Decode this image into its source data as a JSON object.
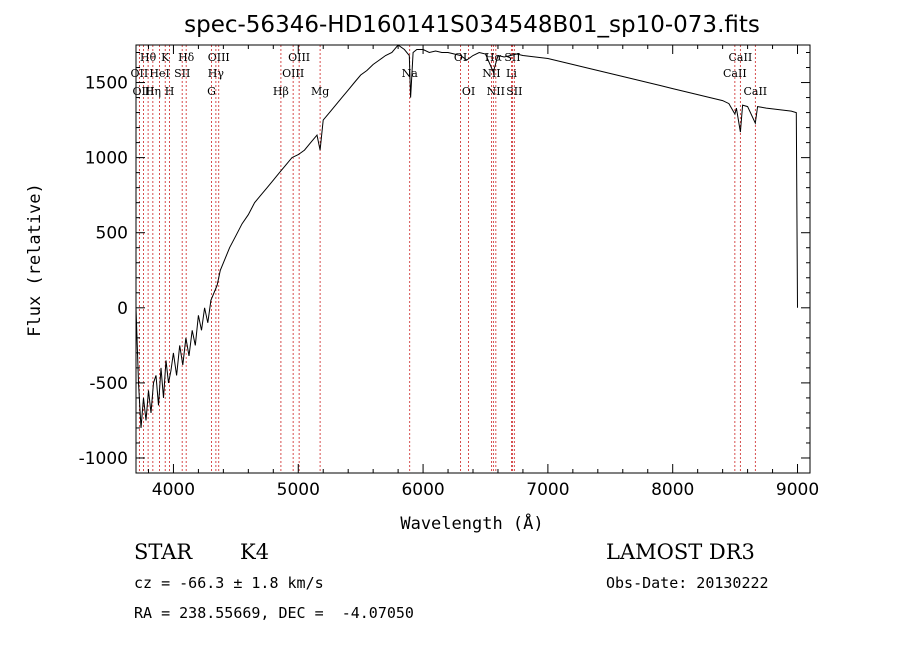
{
  "chart_data": {
    "type": "line",
    "title": "spec-56346-HD160141S034548B01_sp10-073.fits",
    "xlabel": "Wavelength (Å)",
    "ylabel": "Flux (relative)",
    "xlim": [
      3700,
      9100
    ],
    "ylim": [
      -1100,
      1750
    ],
    "xticks": [
      4000,
      5000,
      6000,
      7000,
      8000,
      9000
    ],
    "yticks": [
      -1000,
      -500,
      0,
      500,
      1000,
      1500
    ],
    "series": [
      {
        "x": [
          3700,
          3720,
          3740,
          3760,
          3780,
          3800,
          3820,
          3840,
          3860,
          3880,
          3900,
          3920,
          3940,
          3960,
          3980,
          4000,
          4025,
          4050,
          4075,
          4100,
          4125,
          4150,
          4175,
          4200,
          4225,
          4250,
          4275,
          4300,
          4325,
          4350,
          4375,
          4400,
          4450,
          4500,
          4550,
          4600,
          4650,
          4700,
          4750,
          4800,
          4850,
          4900,
          4950,
          5000,
          5050,
          5100,
          5150,
          5175,
          5200,
          5250,
          5300,
          5350,
          5400,
          5450,
          5500,
          5550,
          5600,
          5650,
          5700,
          5750,
          5800,
          5850,
          5890,
          5900,
          5920,
          5950,
          6000,
          6050,
          6100,
          6150,
          6200,
          6250,
          6300,
          6350,
          6400,
          6450,
          6500,
          6563,
          6600,
          6650,
          6700,
          6750,
          6800,
          6900,
          7000,
          7100,
          7200,
          7300,
          7400,
          7500,
          7600,
          7700,
          7800,
          7900,
          8000,
          8100,
          8200,
          8300,
          8400,
          8450,
          8498,
          8510,
          8542,
          8560,
          8600,
          8662,
          8680,
          8750,
          8850,
          8950,
          8990,
          9000
        ],
        "y": [
          0,
          -500,
          -800,
          -600,
          -750,
          -550,
          -700,
          -500,
          -450,
          -650,
          -400,
          -600,
          -350,
          -500,
          -420,
          -300,
          -450,
          -250,
          -380,
          -200,
          -320,
          -150,
          -250,
          -50,
          -150,
          0,
          -100,
          50,
          100,
          150,
          250,
          300,
          400,
          480,
          560,
          620,
          700,
          750,
          800,
          850,
          900,
          950,
          1000,
          1020,
          1050,
          1100,
          1150,
          1050,
          1250,
          1300,
          1350,
          1400,
          1450,
          1500,
          1550,
          1580,
          1620,
          1650,
          1680,
          1700,
          1750,
          1720,
          1680,
          1400,
          1700,
          1720,
          1720,
          1700,
          1710,
          1700,
          1700,
          1690,
          1680,
          1650,
          1680,
          1700,
          1690,
          1570,
          1680,
          1670,
          1680,
          1690,
          1680,
          1670,
          1660,
          1640,
          1620,
          1600,
          1580,
          1560,
          1540,
          1520,
          1500,
          1480,
          1460,
          1440,
          1420,
          1400,
          1380,
          1360,
          1290,
          1330,
          1170,
          1350,
          1340,
          1230,
          1340,
          1330,
          1320,
          1310,
          1300,
          0
        ]
      }
    ],
    "spectral_lines": [
      {
        "label": "Hθ",
        "x": 3797,
        "row": 1
      },
      {
        "label": "OII",
        "x": 3727,
        "row": 2
      },
      {
        "label": "OIII",
        "x": 3760,
        "row": 3
      },
      {
        "label": "K",
        "x": 3934,
        "row": 1
      },
      {
        "label": "HeI",
        "x": 3889,
        "row": 2
      },
      {
        "label": "Hη",
        "x": 3835,
        "row": 3
      },
      {
        "label": "SII",
        "x": 4070,
        "row": 2
      },
      {
        "label": "H",
        "x": 3969,
        "row": 3
      },
      {
        "label": "Hδ",
        "x": 4102,
        "row": 1
      },
      {
        "label": "OIII",
        "x": 4363,
        "row": 1
      },
      {
        "label": "Hγ",
        "x": 4340,
        "row": 2
      },
      {
        "label": "G",
        "x": 4305,
        "row": 3
      },
      {
        "label": "OIII",
        "x": 5007,
        "row": 1
      },
      {
        "label": "OIII",
        "x": 4959,
        "row": 2
      },
      {
        "label": "Hβ",
        "x": 4861,
        "row": 3
      },
      {
        "label": "Mg",
        "x": 5175,
        "row": 3
      },
      {
        "label": "Na",
        "x": 5893,
        "row": 2
      },
      {
        "label": "OI",
        "x": 6300,
        "row": 1
      },
      {
        "label": "OI",
        "x": 6364,
        "row": 3
      },
      {
        "label": "Hα",
        "x": 6563,
        "row": 1
      },
      {
        "label": "NII",
        "x": 6548,
        "row": 2
      },
      {
        "label": "NII",
        "x": 6583,
        "row": 3
      },
      {
        "label": "SII",
        "x": 6716,
        "row": 1
      },
      {
        "label": "Li",
        "x": 6708,
        "row": 2
      },
      {
        "label": "SII",
        "x": 6731,
        "row": 3
      },
      {
        "label": "CaII",
        "x": 8542,
        "row": 1
      },
      {
        "label": "CaII",
        "x": 8498,
        "row": 2
      },
      {
        "label": "CaII",
        "x": 8662,
        "row": 3
      }
    ]
  },
  "info": {
    "object_class": "STAR",
    "subclass": "K4",
    "survey": "LAMOST DR3",
    "redshift": "cz = -66.3 ± 1.8 km/s",
    "obs_date": "Obs-Date: 20130222",
    "coords": "RA = 238.55669, DEC =  -4.07050"
  }
}
